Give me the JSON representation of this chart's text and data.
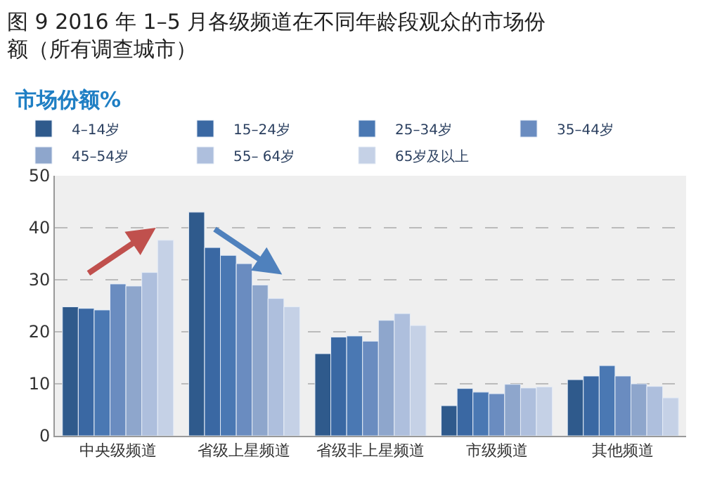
{
  "chart_data": {
    "type": "bar",
    "title": "图 9 2016 年 1–5 月各级频道在不同年龄段观众的市场份额（所有调查城市）",
    "ylabel": "市场份额%",
    "categories": [
      "中央级频道",
      "省级上星频道",
      "省级非上星频道",
      "市级频道",
      "其他频道"
    ],
    "series": [
      {
        "name": "4–14岁",
        "color": "#2f5a8c",
        "values": [
          24.8,
          43.0,
          15.8,
          5.8,
          10.8
        ]
      },
      {
        "name": "15–24岁",
        "color": "#3a68a3",
        "values": [
          24.5,
          36.2,
          19.0,
          9.1,
          11.5
        ]
      },
      {
        "name": "25–34岁",
        "color": "#4a78b3",
        "values": [
          24.2,
          34.7,
          19.2,
          8.4,
          13.5
        ]
      },
      {
        "name": "35–44岁",
        "color": "#6a8cc0",
        "values": [
          29.2,
          33.1,
          18.2,
          8.1,
          11.5
        ]
      },
      {
        "name": "45–54岁",
        "color": "#8ea6cc",
        "values": [
          28.8,
          29.0,
          22.2,
          9.9,
          10.0
        ]
      },
      {
        "name": "55– 64岁",
        "color": "#aebfdd",
        "values": [
          31.4,
          26.4,
          23.5,
          9.2,
          9.5
        ]
      },
      {
        "name": "65岁及以上",
        "color": "#c5d1e6",
        "values": [
          37.6,
          24.8,
          21.2,
          9.4,
          7.3
        ]
      }
    ],
    "ylim": [
      0,
      50
    ],
    "yticks": [
      0,
      10,
      20,
      30,
      40,
      50
    ],
    "grid": "y",
    "legend": "top"
  }
}
